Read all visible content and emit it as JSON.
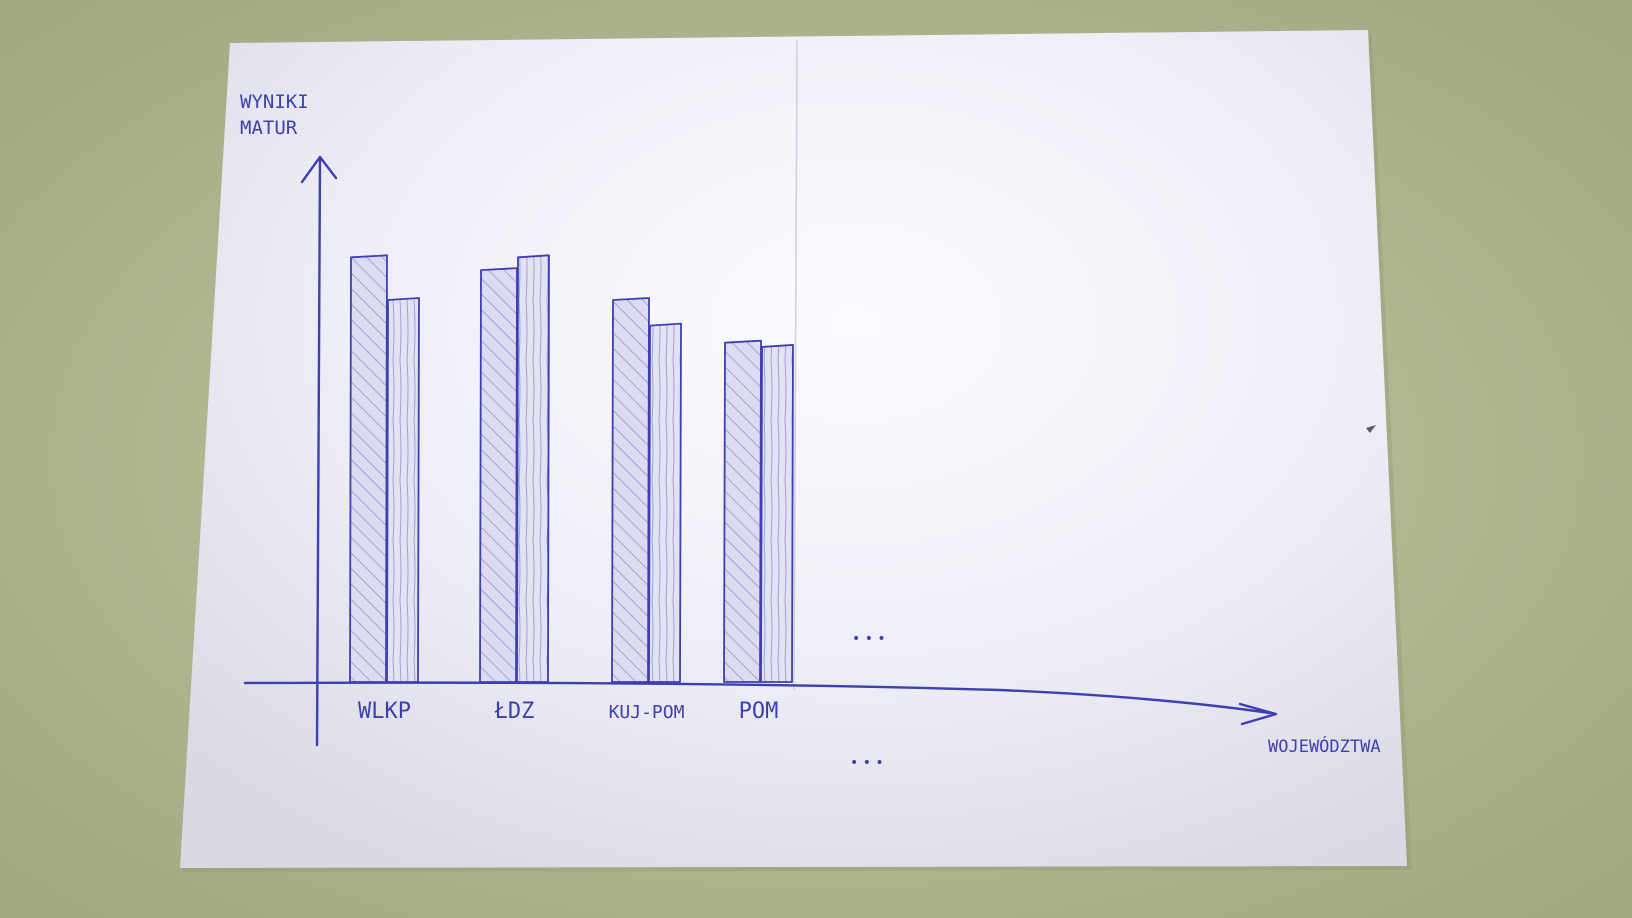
{
  "chart_data": {
    "type": "bar",
    "title": "",
    "ylabel": "WYNIKI MATUR",
    "xlabel": "WOJEWÓDZTWA",
    "categories": [
      "WLKP",
      "ŁDZ",
      "KUJ-POM",
      "POM"
    ],
    "series": [
      {
        "values": [
          10.0,
          9.7,
          9.0,
          8.0
        ]
      },
      {
        "values": [
          9.0,
          10.0,
          8.4,
          7.9
        ]
      }
    ],
    "ylim": [
      0,
      12
    ],
    "grid": false,
    "continuation_marks": [
      "• • •",
      "• • •"
    ],
    "colors": {
      "ink": "#3e3fb0",
      "paper": "#eeeef6",
      "table": "#aeb38c"
    }
  }
}
